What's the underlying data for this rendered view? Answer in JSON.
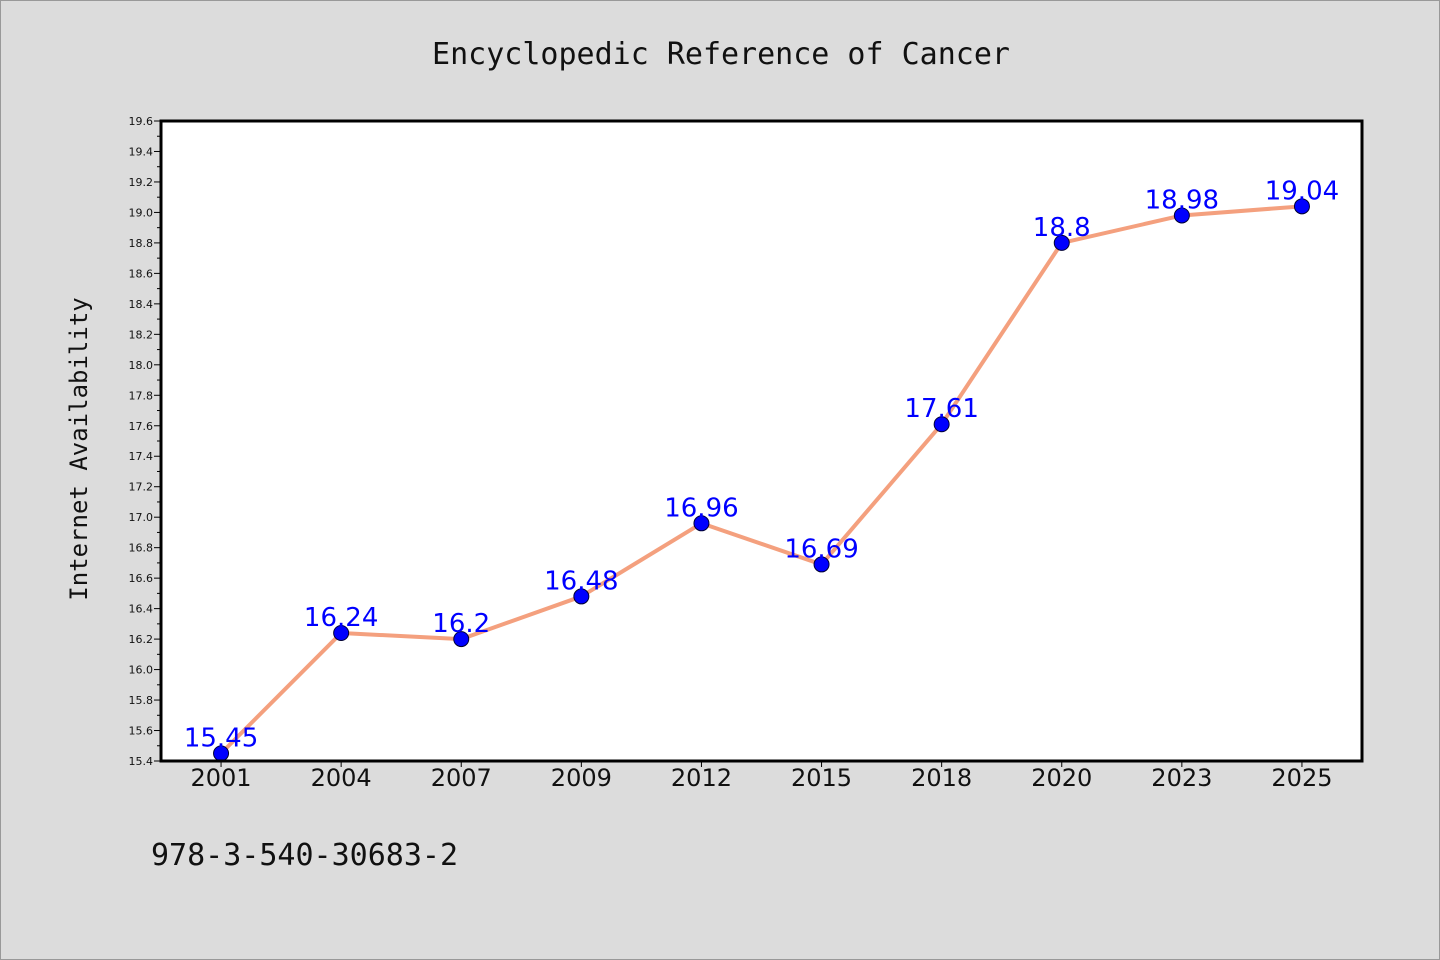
{
  "colors": {
    "background": "#dcdcdc",
    "plot_background": "#ffffff",
    "line": "#f4a07e",
    "marker": "#0000ff",
    "data_label": "#0000ff",
    "axis": "#000000"
  },
  "footer": {
    "isbn": "978-3-540-30683-2"
  },
  "chart_data": {
    "type": "line",
    "title": "Encyclopedic Reference of Cancer",
    "xlabel": "",
    "ylabel": "Internet Availability",
    "categories": [
      "2001",
      "2004",
      "2007",
      "2009",
      "2012",
      "2015",
      "2018",
      "2020",
      "2023",
      "2025"
    ],
    "series": [
      {
        "values": [
          15.45,
          16.24,
          16.2,
          16.48,
          16.96,
          16.69,
          17.61,
          18.8,
          18.98,
          19.04
        ],
        "data_labels": [
          "15.45",
          "16.24",
          "16.2",
          "16.48",
          "16.96",
          "16.69",
          "17.61",
          "18.8",
          "18.98",
          "19.04"
        ]
      }
    ],
    "ylim": [
      15.4,
      19.6
    ],
    "yticks": [
      "15.4",
      "15.6",
      "15.8",
      "16.0",
      "16.2",
      "16.4",
      "16.6",
      "16.8",
      "17.0",
      "17.2",
      "17.4",
      "17.6",
      "17.8",
      "18.0",
      "18.2",
      "18.4",
      "18.6",
      "18.8",
      "19.0",
      "19.2",
      "19.4",
      "19.6"
    ],
    "grid": false,
    "legend": "none"
  }
}
